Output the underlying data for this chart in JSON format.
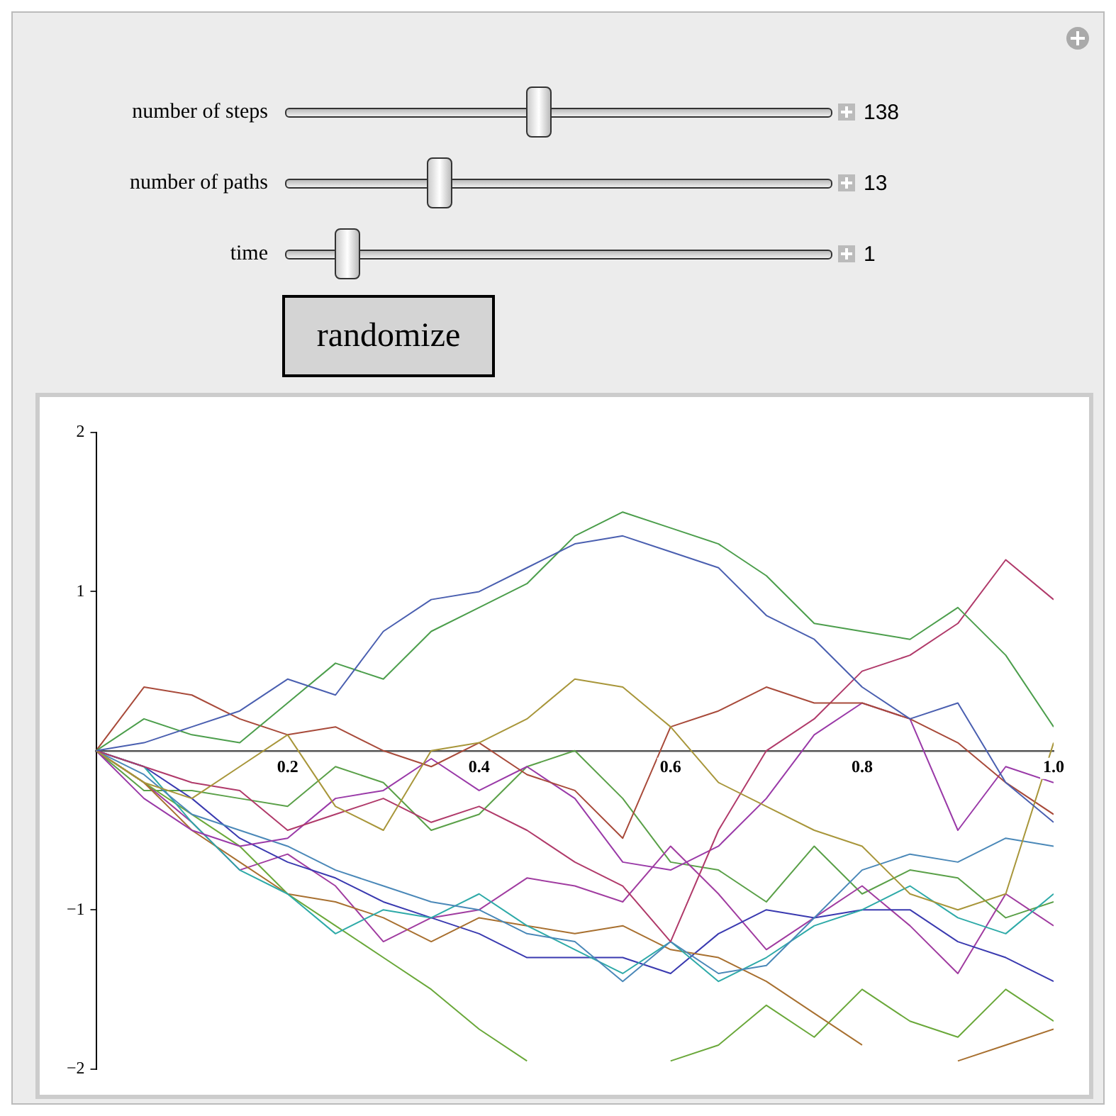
{
  "chart_data": {
    "type": "line",
    "annotations": [
      "number of steps",
      "138",
      "number of paths",
      "13",
      "time",
      "1",
      "randomize"
    ],
    "x": [
      0,
      0.05,
      0.1,
      0.15,
      0.2,
      0.25,
      0.3,
      0.35,
      0.4,
      0.45,
      0.5,
      0.55,
      0.6,
      0.65,
      0.7,
      0.75,
      0.8,
      0.85,
      0.9,
      0.95,
      1
    ],
    "xlim": [
      0,
      1
    ],
    "xticks": [
      0.2,
      0.4,
      0.6,
      0.8,
      {
        "value": 1,
        "label": "1.0"
      }
    ],
    "ylim": [
      -2,
      2
    ],
    "yticks": [
      {
        "value": -2,
        "label": "−2"
      },
      {
        "value": -1,
        "label": "−1"
      },
      1,
      2
    ],
    "grid": false,
    "legend": false,
    "marker": "none",
    "line_style": "solid",
    "series": [
      {
        "color": "#4a5fb0",
        "values": [
          0,
          0.05,
          0.15,
          0.25,
          0.45,
          0.35,
          0.75,
          0.95,
          1.0,
          1.15,
          1.3,
          1.35,
          1.25,
          1.15,
          0.85,
          0.7,
          0.4,
          0.2,
          0.3,
          -0.2,
          -0.45
        ]
      },
      {
        "color": "#4c9e4c",
        "values": [
          0,
          0.2,
          0.1,
          0.05,
          0.3,
          0.55,
          0.45,
          0.75,
          0.9,
          1.05,
          1.35,
          1.5,
          1.4,
          1.3,
          1.1,
          0.8,
          0.75,
          0.7,
          0.9,
          0.6,
          0.15
        ]
      },
      {
        "color": "#a8963a",
        "values": [
          0,
          -0.2,
          -0.3,
          -0.1,
          0.1,
          -0.35,
          -0.5,
          0,
          0.05,
          0.2,
          0.45,
          0.4,
          0.15,
          -0.2,
          -0.35,
          -0.5,
          -0.6,
          -0.9,
          -1.0,
          -0.9,
          0.05
        ]
      },
      {
        "color": "#a84a3a",
        "values": [
          0,
          0.4,
          0.35,
          0.2,
          0.1,
          0.15,
          0,
          -0.1,
          0.05,
          -0.15,
          -0.25,
          -0.55,
          0.15,
          0.25,
          0.4,
          0.3,
          0.3,
          0.2,
          0.05,
          -0.2,
          -0.4
        ]
      },
      {
        "color": "#b03a6a",
        "values": [
          0,
          -0.1,
          -0.2,
          -0.25,
          -0.5,
          -0.4,
          -0.3,
          -0.45,
          -0.35,
          -0.5,
          -0.7,
          -0.85,
          -1.2,
          -0.5,
          0,
          0.2,
          0.5,
          0.6,
          0.8,
          1.2,
          0.95
        ]
      },
      {
        "color": "#9a3aa8",
        "values": [
          0,
          -0.3,
          -0.5,
          -0.6,
          -0.55,
          -0.3,
          -0.25,
          -0.05,
          -0.25,
          -0.1,
          -0.3,
          -0.7,
          -0.75,
          -0.6,
          -0.3,
          0.1,
          0.3,
          0.2,
          -0.5,
          -0.1,
          -0.2
        ]
      },
      {
        "color": "#4a88b8",
        "values": [
          0,
          -0.15,
          -0.4,
          -0.5,
          -0.6,
          -0.75,
          -0.85,
          -0.95,
          -1.0,
          -1.15,
          -1.2,
          -1.45,
          -1.2,
          -1.4,
          -1.35,
          -1.05,
          -0.75,
          -0.65,
          -0.7,
          -0.55,
          -0.6
        ]
      },
      {
        "color": "#2eaaa8",
        "values": [
          0,
          -0.1,
          -0.45,
          -0.75,
          -0.9,
          -1.15,
          -1.0,
          -1.05,
          -0.9,
          -1.1,
          -1.25,
          -1.4,
          -1.2,
          -1.45,
          -1.3,
          -1.1,
          -1.0,
          -0.85,
          -1.05,
          -1.15,
          -0.9
        ]
      },
      {
        "color": "#a87030",
        "values": [
          0,
          -0.2,
          -0.5,
          -0.7,
          -0.9,
          -0.95,
          -1.05,
          -1.2,
          -1.05,
          -1.1,
          -1.15,
          -1.1,
          -1.25,
          -1.3,
          -1.45,
          -1.65,
          -1.85,
          null,
          -1.95,
          -1.85,
          -1.75
        ]
      },
      {
        "color": "#6aa83a",
        "values": [
          0,
          -0.2,
          -0.4,
          -0.6,
          -0.9,
          -1.1,
          -1.3,
          -1.5,
          -1.75,
          -1.95,
          null,
          null,
          -1.95,
          -1.85,
          -1.6,
          -1.8,
          -1.5,
          -1.7,
          -1.8,
          -1.5,
          -1.7
        ]
      },
      {
        "color": "#3a3ab0",
        "values": [
          0,
          -0.1,
          -0.3,
          -0.55,
          -0.7,
          -0.8,
          -0.95,
          -1.05,
          -1.15,
          -1.3,
          -1.3,
          -1.3,
          -1.4,
          -1.15,
          -1.0,
          -1.05,
          -1.0,
          -1.0,
          -1.2,
          -1.3,
          -1.45
        ]
      },
      {
        "color": "#a03ca0",
        "values": [
          0,
          -0.2,
          -0.45,
          -0.75,
          -0.65,
          -0.85,
          -1.2,
          -1.05,
          -1.0,
          -0.8,
          -0.85,
          -0.95,
          -0.6,
          -0.9,
          -1.25,
          -1.05,
          -0.85,
          -1.1,
          -1.4,
          -0.9,
          -1.1
        ]
      },
      {
        "color": "#5aa048",
        "values": [
          0,
          -0.25,
          -0.25,
          -0.3,
          -0.35,
          -0.1,
          -0.2,
          -0.5,
          -0.4,
          -0.1,
          0,
          -0.3,
          -0.7,
          -0.75,
          -0.95,
          -0.6,
          -0.9,
          -0.75,
          -0.8,
          -1.05,
          -0.95
        ]
      }
    ]
  }
}
